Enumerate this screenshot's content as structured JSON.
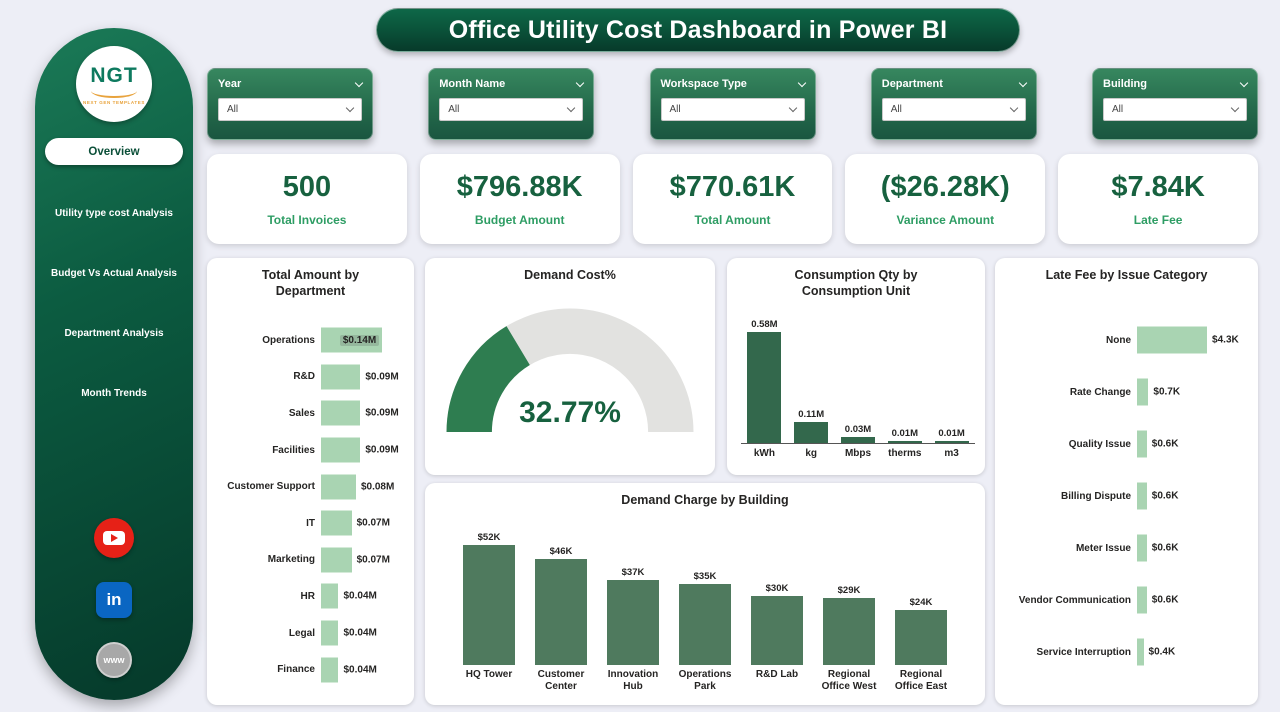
{
  "title": "Office Utility Cost Dashboard in Power BI",
  "sidebar": {
    "logo_text": "NGT",
    "logo_subtext": "NEXT GEN TEMPLATES",
    "items": [
      {
        "label": "Overview",
        "active": true
      },
      {
        "label": "Utility type cost Analysis",
        "active": false
      },
      {
        "label": "Budget Vs Actual Analysis",
        "active": false
      },
      {
        "label": "Department Analysis",
        "active": false
      },
      {
        "label": "Month Trends",
        "active": false
      }
    ],
    "social_icons": [
      {
        "name": "youtube"
      },
      {
        "name": "linkedin",
        "glyph": "in"
      },
      {
        "name": "website",
        "glyph": "www"
      }
    ]
  },
  "filters": [
    {
      "label": "Year",
      "value": "All"
    },
    {
      "label": "Month Name",
      "value": "All"
    },
    {
      "label": "Workspace Type",
      "value": "All"
    },
    {
      "label": "Department",
      "value": "All"
    },
    {
      "label": "Building",
      "value": "All"
    }
  ],
  "kpis": [
    {
      "value": "500",
      "label": "Total Invoices"
    },
    {
      "value": "$796.88K",
      "label": "Budget Amount"
    },
    {
      "value": "$770.61K",
      "label": "Total Amount"
    },
    {
      "value": "($26.28K)",
      "label": "Variance Amount"
    },
    {
      "value": "$7.84K",
      "label": "Late Fee"
    }
  ],
  "colors": {
    "theme_green_dark": "#0b4f38",
    "gauge_fill": "#2e7d50",
    "gauge_rest": "#e2e2e0",
    "bar_dark": "#33684c",
    "bar_medium": "#4f7a5e",
    "bar_light": "#a9d4b2",
    "kpi_number": "#17613f",
    "kpi_label": "#2e9d64"
  },
  "chart_data": [
    {
      "id": "dept",
      "type": "bar",
      "orientation": "horizontal",
      "title": "Total Amount by Department",
      "categories": [
        "Operations",
        "R&D",
        "Sales",
        "Facilities",
        "Customer Support",
        "IT",
        "Marketing",
        "HR",
        "Legal",
        "Finance"
      ],
      "values": [
        0.14,
        0.09,
        0.09,
        0.09,
        0.08,
        0.07,
        0.07,
        0.04,
        0.04,
        0.04
      ],
      "labels": [
        "$0.14M",
        "$0.09M",
        "$0.09M",
        "$0.09M",
        "$0.08M",
        "$0.07M",
        "$0.07M",
        "$0.04M",
        "$0.04M",
        "$0.04M"
      ],
      "unit": "USD millions",
      "legend": "off",
      "grid": "off"
    },
    {
      "id": "gauge",
      "type": "gauge",
      "title": "Demand Cost%",
      "value": 32.77,
      "min": 0,
      "max": 100,
      "label": "32.77%"
    },
    {
      "id": "consumption",
      "type": "bar",
      "orientation": "vertical",
      "title": "Consumption Qty by Consumption Unit",
      "categories": [
        "kWh",
        "kg",
        "Mbps",
        "therms",
        "m3"
      ],
      "values": [
        0.58,
        0.11,
        0.03,
        0.01,
        0.01
      ],
      "labels": [
        "0.58M",
        "0.11M",
        "0.03M",
        "0.01M",
        "0.01M"
      ],
      "unit": "millions",
      "legend": "off",
      "grid": "off"
    },
    {
      "id": "building",
      "type": "bar",
      "orientation": "vertical",
      "title": "Demand Charge by Building",
      "categories": [
        "HQ Tower",
        "Customer Center",
        "Innovation Hub",
        "Operations Park",
        "R&D Lab",
        "Regional Office West",
        "Regional Office East"
      ],
      "values": [
        52,
        46,
        37,
        35,
        30,
        29,
        24
      ],
      "labels": [
        "$52K",
        "$46K",
        "$37K",
        "$35K",
        "$30K",
        "$29K",
        "$24K"
      ],
      "unit": "USD thousands",
      "legend": "off",
      "grid": "off"
    },
    {
      "id": "latefee",
      "type": "bar",
      "orientation": "horizontal",
      "title": "Late Fee by Issue Category",
      "categories": [
        "None",
        "Rate Change",
        "Quality Issue",
        "Billing Dispute",
        "Meter Issue",
        "Vendor Communication",
        "Service Interruption"
      ],
      "values": [
        4.3,
        0.7,
        0.6,
        0.6,
        0.6,
        0.6,
        0.4
      ],
      "labels": [
        "$4.3K",
        "$0.7K",
        "$0.6K",
        "$0.6K",
        "$0.6K",
        "$0.6K",
        "$0.4K"
      ],
      "unit": "USD thousands",
      "legend": "off",
      "grid": "off"
    }
  ]
}
